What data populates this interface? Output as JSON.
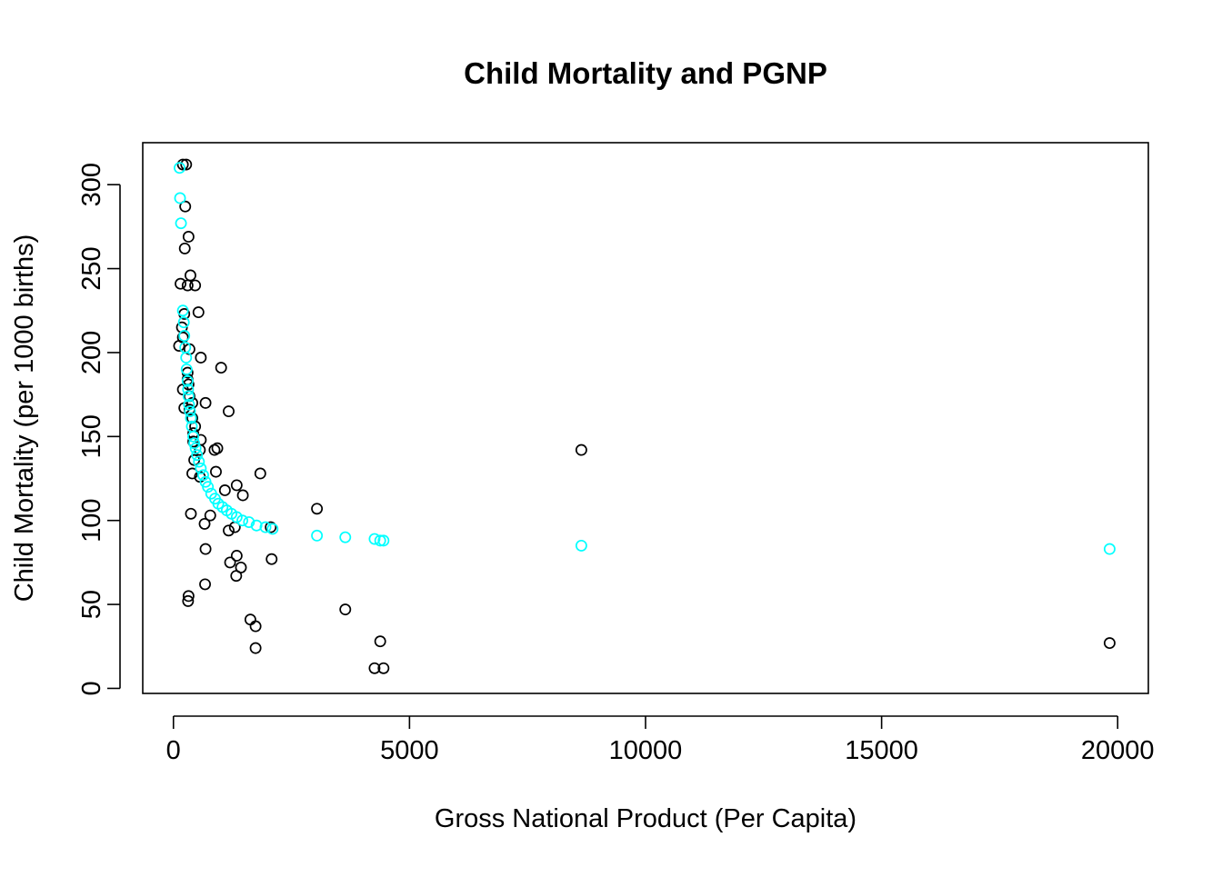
{
  "chart_data": {
    "type": "scatter",
    "title": "Child Mortality and PGNP",
    "xlabel": "Gross National Product (Per Capita)",
    "ylabel": "Child Mortality (per 1000 births)",
    "xlim": [
      -650,
      20650
    ],
    "ylim": [
      -3,
      325
    ],
    "xticks": [
      0,
      5000,
      10000,
      15000,
      20000
    ],
    "xtick_labels": [
      "0",
      "5000",
      "10000",
      "15000",
      "20000"
    ],
    "yticks": [
      0,
      50,
      100,
      150,
      200,
      250,
      300
    ],
    "ytick_labels": [
      "0",
      "50",
      "100",
      "150",
      "200",
      "250",
      "300"
    ],
    "grid": false,
    "legend": "none",
    "series": [
      {
        "color": "#000000",
        "marker": "open-circle",
        "points": [
          [
            200,
            312
          ],
          [
            270,
            312
          ],
          [
            250,
            287
          ],
          [
            320,
            269
          ],
          [
            240,
            262
          ],
          [
            360,
            246
          ],
          [
            150,
            241
          ],
          [
            300,
            240
          ],
          [
            460,
            240
          ],
          [
            530,
            224
          ],
          [
            230,
            223
          ],
          [
            180,
            215
          ],
          [
            200,
            209
          ],
          [
            120,
            204
          ],
          [
            340,
            202
          ],
          [
            580,
            197
          ],
          [
            1010,
            191
          ],
          [
            300,
            188
          ],
          [
            300,
            184
          ],
          [
            320,
            181
          ],
          [
            200,
            178
          ],
          [
            340,
            174
          ],
          [
            680,
            170
          ],
          [
            400,
            170
          ],
          [
            230,
            167
          ],
          [
            340,
            166
          ],
          [
            1170,
            165
          ],
          [
            400,
            161
          ],
          [
            460,
            156
          ],
          [
            420,
            152
          ],
          [
            580,
            148
          ],
          [
            420,
            147
          ],
          [
            870,
            142
          ],
          [
            930,
            143
          ],
          [
            560,
            142
          ],
          [
            440,
            136
          ],
          [
            900,
            129
          ],
          [
            400,
            128
          ],
          [
            560,
            126
          ],
          [
            1840,
            128
          ],
          [
            1340,
            121
          ],
          [
            1090,
            118
          ],
          [
            1470,
            115
          ],
          [
            3040,
            107
          ],
          [
            370,
            104
          ],
          [
            780,
            103
          ],
          [
            660,
            98
          ],
          [
            1300,
            96
          ],
          [
            1170,
            94
          ],
          [
            2060,
            96
          ],
          [
            680,
            83
          ],
          [
            1340,
            79
          ],
          [
            2080,
            77
          ],
          [
            1200,
            75
          ],
          [
            1430,
            72
          ],
          [
            1330,
            67
          ],
          [
            670,
            62
          ],
          [
            320,
            55
          ],
          [
            310,
            52
          ],
          [
            3640,
            47
          ],
          [
            1630,
            41
          ],
          [
            1740,
            37
          ],
          [
            8640,
            142
          ],
          [
            4380,
            28
          ],
          [
            19830,
            27
          ],
          [
            1740,
            24
          ],
          [
            4260,
            12
          ],
          [
            4450,
            12
          ]
        ]
      },
      {
        "color": "#00FFFF",
        "marker": "open-circle",
        "points": [
          [
            130,
            310
          ],
          [
            140,
            292
          ],
          [
            160,
            277
          ],
          [
            200,
            225
          ],
          [
            220,
            218
          ],
          [
            230,
            210
          ],
          [
            250,
            203
          ],
          [
            270,
            197
          ],
          [
            280,
            190
          ],
          [
            300,
            183
          ],
          [
            310,
            178
          ],
          [
            320,
            174
          ],
          [
            330,
            169
          ],
          [
            350,
            165
          ],
          [
            370,
            161
          ],
          [
            390,
            156
          ],
          [
            420,
            150
          ],
          [
            440,
            146
          ],
          [
            470,
            143
          ],
          [
            500,
            139
          ],
          [
            540,
            135
          ],
          [
            580,
            131
          ],
          [
            630,
            127
          ],
          [
            680,
            123
          ],
          [
            730,
            120
          ],
          [
            800,
            116
          ],
          [
            880,
            113
          ],
          [
            950,
            110
          ],
          [
            1040,
            108
          ],
          [
            1130,
            106
          ],
          [
            1230,
            104
          ],
          [
            1340,
            102
          ],
          [
            1460,
            100
          ],
          [
            1600,
            99
          ],
          [
            1760,
            97
          ],
          [
            1950,
            96
          ],
          [
            2100,
            95
          ],
          [
            3040,
            91
          ],
          [
            3640,
            90
          ],
          [
            4260,
            89
          ],
          [
            4380,
            88
          ],
          [
            4450,
            88
          ],
          [
            8640,
            85
          ],
          [
            19830,
            83
          ]
        ]
      }
    ]
  }
}
